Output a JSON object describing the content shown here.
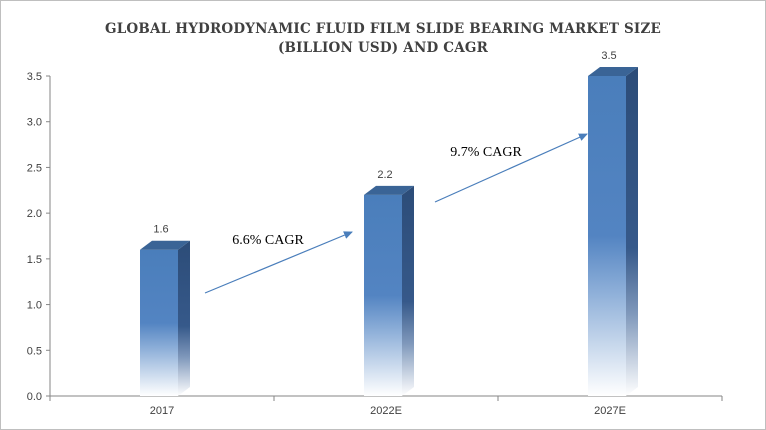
{
  "chart_data": {
    "type": "bar",
    "title_lines": [
      "GLOBAL HYDRODYNAMIC FLUID FILM SLIDE BEARING MARKET SIZE",
      "(BILLION USD) AND CAGR"
    ],
    "categories": [
      "2017",
      "2022E",
      "2027E"
    ],
    "values": [
      1.6,
      2.2,
      3.5
    ],
    "data_labels": [
      "1.6",
      "2.2",
      "3.5"
    ],
    "ylim": [
      0,
      3.5
    ],
    "yticks": [
      "0.0",
      "0.5",
      "1.0",
      "1.5",
      "2.0",
      "2.5",
      "3.0",
      "3.5"
    ],
    "grid": false,
    "annotations": [
      "6.6% CAGR",
      "9.7% CAGR"
    ],
    "bar_color": "#4a7ebb",
    "bar_side_color": "#2f4f7a",
    "bar_top_color": "#3a6496",
    "arrow_color": "#4a7ebb"
  }
}
